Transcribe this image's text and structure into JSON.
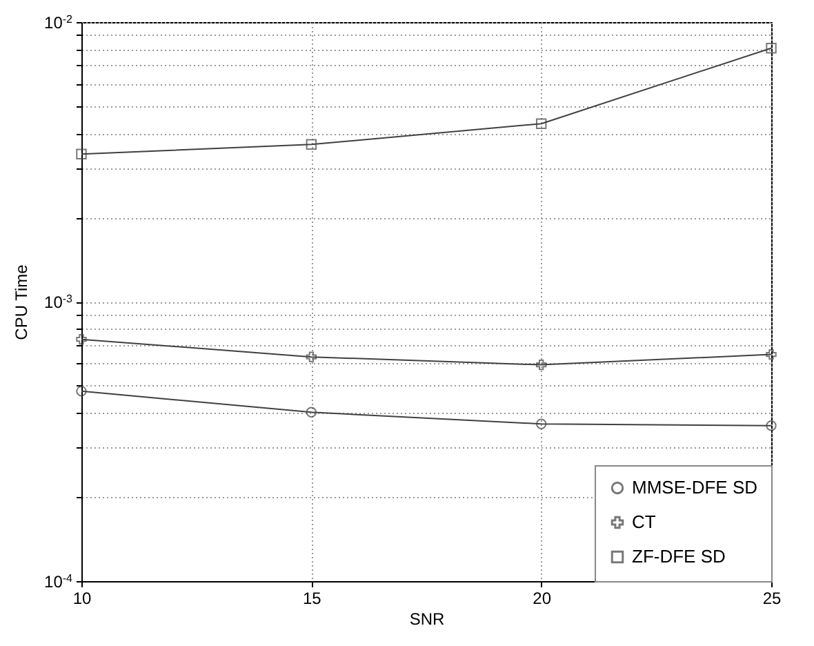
{
  "chart_data": {
    "type": "line",
    "xlabel": "SNR",
    "ylabel": "CPU Time",
    "x": [
      10,
      15,
      20,
      25
    ],
    "series": [
      {
        "name": "MMSE-DFE SD",
        "color": "#404040",
        "marker": "circle",
        "values": [
          0.000478,
          0.000402,
          0.000365,
          0.00036
        ]
      },
      {
        "name": "CT",
        "color": "#404040",
        "marker": "cross",
        "values": [
          0.000733,
          0.000634,
          0.000594,
          0.000647
        ]
      },
      {
        "name": "ZF-DFE SD",
        "color": "#404040",
        "marker": "square",
        "values": [
          0.00337,
          0.00365,
          0.00433,
          0.00807
        ]
      }
    ],
    "log": "y",
    "xlim": [
      10,
      25
    ],
    "xticks": [
      10,
      15,
      20,
      25
    ],
    "ylim": [
      0.0001,
      0.01
    ],
    "yticks": [
      {
        "value": 0.0001,
        "label": "10$^{-4}$"
      },
      {
        "value": 0.001,
        "label": "10$^{-3}$"
      },
      {
        "value": 0.01,
        "label": "10$^{-2}$"
      }
    ],
    "grid": true,
    "legend": "bottom right",
    "line_style": "solid"
  }
}
